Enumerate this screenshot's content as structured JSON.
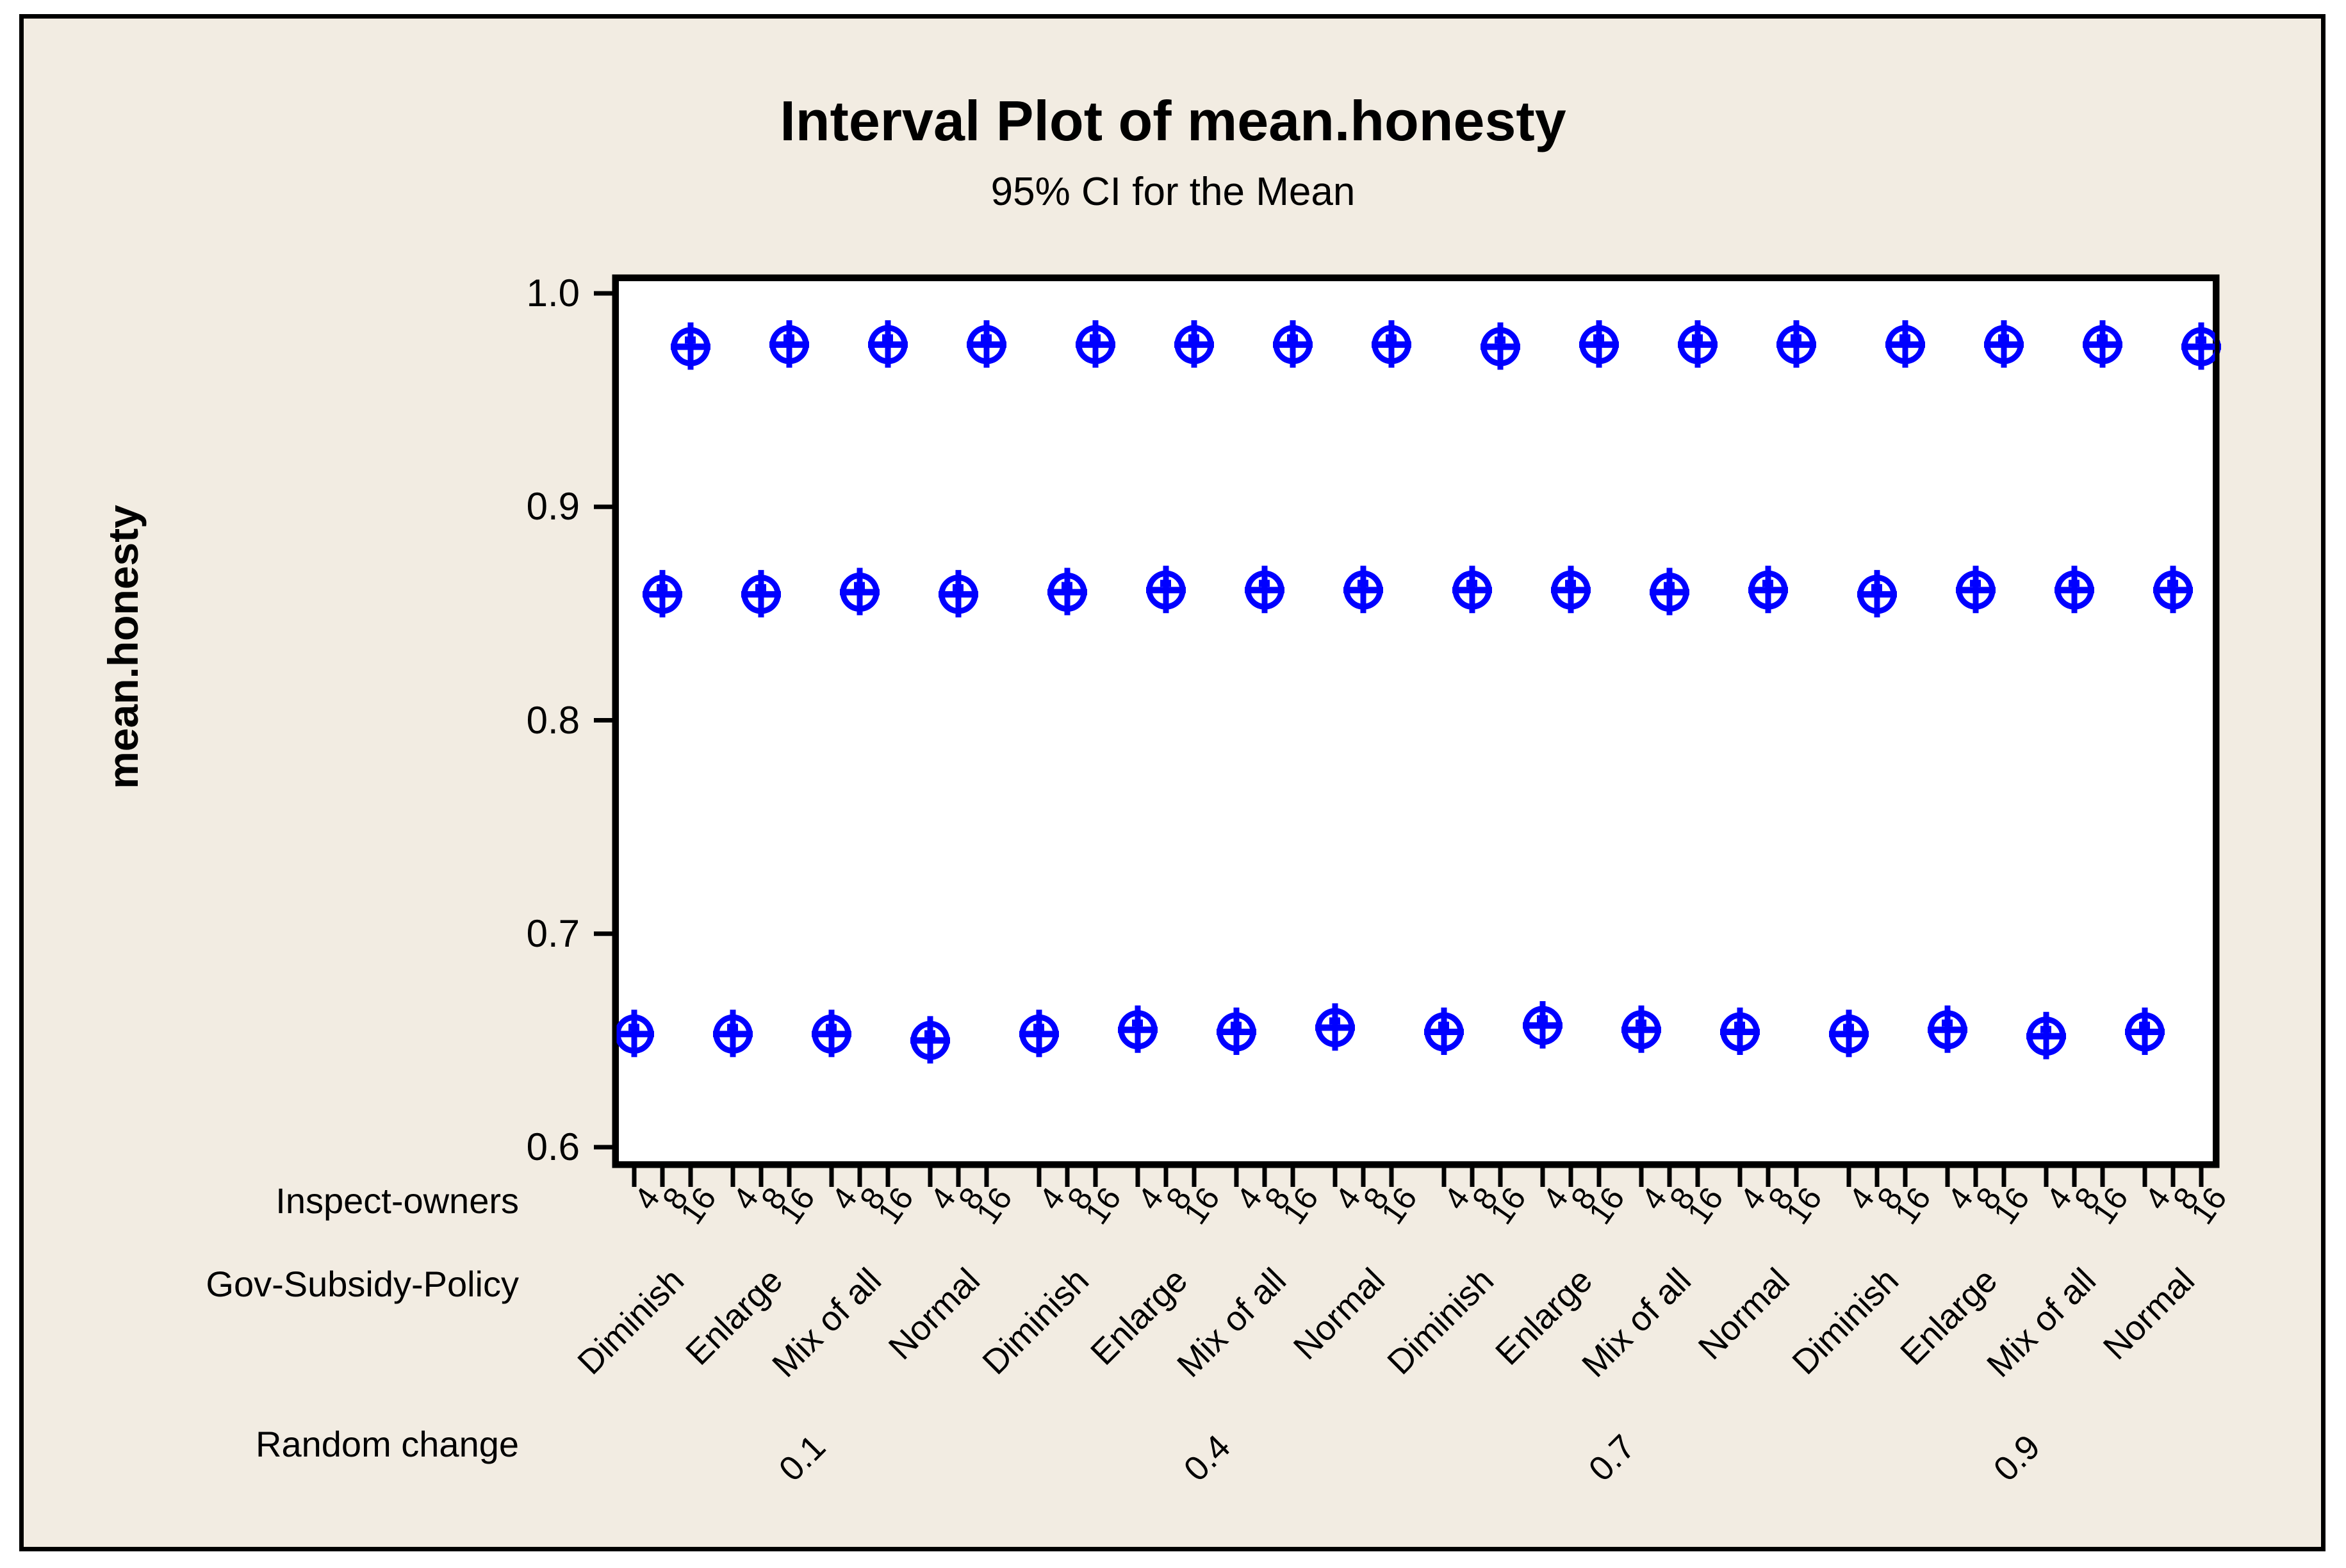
{
  "title": "Interval Plot of mean.honesty",
  "subtitle": "95% CI for the Mean",
  "colors": {
    "figure_background": "#F2ECE2",
    "plot_background": "#FFFFFF",
    "marker_blue": "#0000FF",
    "axis_black": "#000000"
  },
  "y_axis": {
    "label": "mean.honesty",
    "tick_labels": [
      "1.0",
      "0.9",
      "0.8",
      "0.7",
      "0.6"
    ]
  },
  "x_axis": {
    "row_labels": {
      "owners": "Inspect-owners",
      "policy": "Gov-Subsidy-Policy",
      "random": "Random change"
    }
  },
  "chart_data": {
    "type": "interval",
    "title": "Interval Plot of mean.honesty",
    "subtitle": "95% CI for the Mean",
    "ylabel": "mean.honesty",
    "ylim": [
      0.6,
      1.0
    ],
    "y_ticks": [
      1.0,
      0.9,
      0.8,
      0.7,
      0.6
    ],
    "grid": false,
    "legend": false,
    "ci_half_width": 0.009,
    "factors": {
      "inspect_owners_levels": [
        "4",
        "8",
        "16"
      ],
      "gov_subsidy_levels": [
        "Diminish",
        "Enlarge",
        "Mix of all",
        "Normal"
      ],
      "random_change_levels": [
        "0.1",
        "0.4",
        "0.7",
        "0.9"
      ]
    },
    "groups": [
      {
        "random_change": "0.1",
        "policies": [
          {
            "policy": "Diminish",
            "means_by_owners": [
              0.653,
              0.859,
              0.975
            ]
          },
          {
            "policy": "Enlarge",
            "means_by_owners": [
              0.653,
              0.859,
              0.976
            ]
          },
          {
            "policy": "Mix of all",
            "means_by_owners": [
              0.653,
              0.86,
              0.976
            ]
          },
          {
            "policy": "Normal",
            "means_by_owners": [
              0.65,
              0.859,
              0.976
            ]
          }
        ]
      },
      {
        "random_change": "0.4",
        "policies": [
          {
            "policy": "Diminish",
            "means_by_owners": [
              0.653,
              0.86,
              0.976
            ]
          },
          {
            "policy": "Enlarge",
            "means_by_owners": [
              0.655,
              0.861,
              0.976
            ]
          },
          {
            "policy": "Mix of all",
            "means_by_owners": [
              0.654,
              0.861,
              0.976
            ]
          },
          {
            "policy": "Normal",
            "means_by_owners": [
              0.656,
              0.861,
              0.976
            ]
          }
        ]
      },
      {
        "random_change": "0.7",
        "policies": [
          {
            "policy": "Diminish",
            "means_by_owners": [
              0.654,
              0.861,
              0.975
            ]
          },
          {
            "policy": "Enlarge",
            "means_by_owners": [
              0.657,
              0.861,
              0.976
            ]
          },
          {
            "policy": "Mix of all",
            "means_by_owners": [
              0.655,
              0.86,
              0.976
            ]
          },
          {
            "policy": "Normal",
            "means_by_owners": [
              0.654,
              0.861,
              0.976
            ]
          }
        ]
      },
      {
        "random_change": "0.9",
        "policies": [
          {
            "policy": "Diminish",
            "means_by_owners": [
              0.653,
              0.859,
              0.976
            ]
          },
          {
            "policy": "Enlarge",
            "means_by_owners": [
              0.655,
              0.861,
              0.976
            ]
          },
          {
            "policy": "Mix of all",
            "means_by_owners": [
              0.652,
              0.861,
              0.976
            ]
          },
          {
            "policy": "Normal",
            "means_by_owners": [
              0.654,
              0.861,
              0.975
            ]
          }
        ]
      }
    ]
  }
}
